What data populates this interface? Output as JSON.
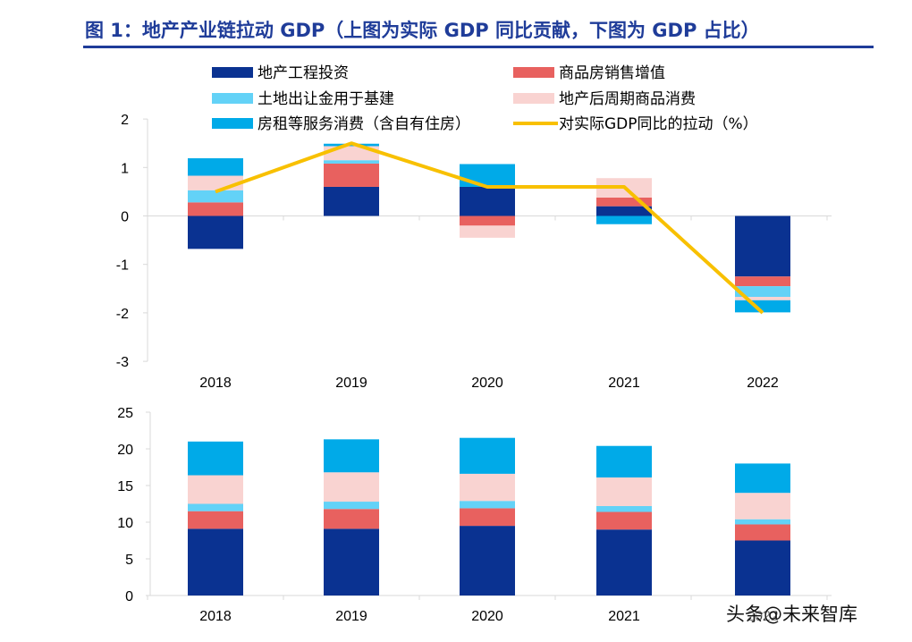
{
  "figure": {
    "title": "图 1：地产产业链拉动 GDP（上图为实际 GDP 同比贡献，下图为 GDP 占比）",
    "watermark": "头条@未来智库"
  },
  "colors": {
    "title": "#1f3c99",
    "invest": "#0a3291",
    "sales": "#e8615f",
    "land": "#63d2f7",
    "post": "#f9d3d1",
    "rent": "#00aae8",
    "line": "#f8c000"
  },
  "chart_data": [
    {
      "type": "bar",
      "stacked": true,
      "categories": [
        "2018",
        "2019",
        "2020",
        "2021",
        "2022"
      ],
      "ylim": [
        -3,
        2
      ],
      "yticks": [
        "2",
        "1",
        "0",
        "-1",
        "-2",
        "-3"
      ],
      "grid": false,
      "legend": [
        {
          "name": "地产工程投资",
          "color_key": "invest",
          "kind": "bar"
        },
        {
          "name": "商品房销售增值",
          "color_key": "sales",
          "kind": "bar"
        },
        {
          "name": "土地出让金用于基建",
          "color_key": "land",
          "kind": "bar"
        },
        {
          "name": "地产后周期商品消费",
          "color_key": "post",
          "kind": "bar"
        },
        {
          "name": "房租等服务消费（含自有住房）",
          "color_key": "rent",
          "kind": "bar"
        },
        {
          "name": "对实际GDP同比的拉动（%）",
          "color_key": "line",
          "kind": "line"
        }
      ],
      "series": [
        {
          "name": "地产工程投资",
          "color_key": "invest",
          "values": [
            -0.68,
            0.6,
            0.6,
            0.2,
            -1.25
          ]
        },
        {
          "name": "商品房销售增值",
          "color_key": "sales",
          "values": [
            0.28,
            0.48,
            -0.2,
            0.18,
            -0.2
          ]
        },
        {
          "name": "土地出让金用于基建",
          "color_key": "land",
          "values": [
            0.25,
            0.07,
            0.0,
            0.0,
            -0.22
          ]
        },
        {
          "name": "地产后周期商品消费",
          "color_key": "post",
          "values": [
            0.3,
            0.29,
            -0.25,
            0.4,
            -0.07
          ]
        },
        {
          "name": "房租等服务消费（含自有住房）",
          "color_key": "rent",
          "values": [
            0.36,
            0.05,
            0.47,
            -0.17,
            -0.25
          ]
        }
      ],
      "line": {
        "name": "对实际GDP同比的拉动（%）",
        "color_key": "line",
        "values": [
          0.5,
          1.5,
          0.6,
          0.6,
          -2.0
        ]
      }
    },
    {
      "type": "bar",
      "stacked": true,
      "categories": [
        "2018",
        "2019",
        "2020",
        "2021",
        "2022"
      ],
      "ylim": [
        0,
        25
      ],
      "yticks": [
        "25",
        "20",
        "15",
        "10",
        "5",
        "0"
      ],
      "grid": false,
      "series": [
        {
          "name": "地产工程投资",
          "color_key": "invest",
          "values": [
            9.1,
            9.1,
            9.5,
            9.0,
            7.5
          ]
        },
        {
          "name": "商品房销售增值",
          "color_key": "sales",
          "values": [
            2.4,
            2.7,
            2.4,
            2.4,
            2.2
          ]
        },
        {
          "name": "土地出让金用于基建",
          "color_key": "land",
          "values": [
            1.0,
            1.0,
            1.0,
            0.8,
            0.7
          ]
        },
        {
          "name": "地产后周期商品消费",
          "color_key": "post",
          "values": [
            3.9,
            4.0,
            3.7,
            3.9,
            3.6
          ]
        },
        {
          "name": "房租等服务消费（含自有住房）",
          "color_key": "rent",
          "values": [
            4.6,
            4.5,
            4.9,
            4.3,
            4.0
          ]
        }
      ]
    }
  ]
}
